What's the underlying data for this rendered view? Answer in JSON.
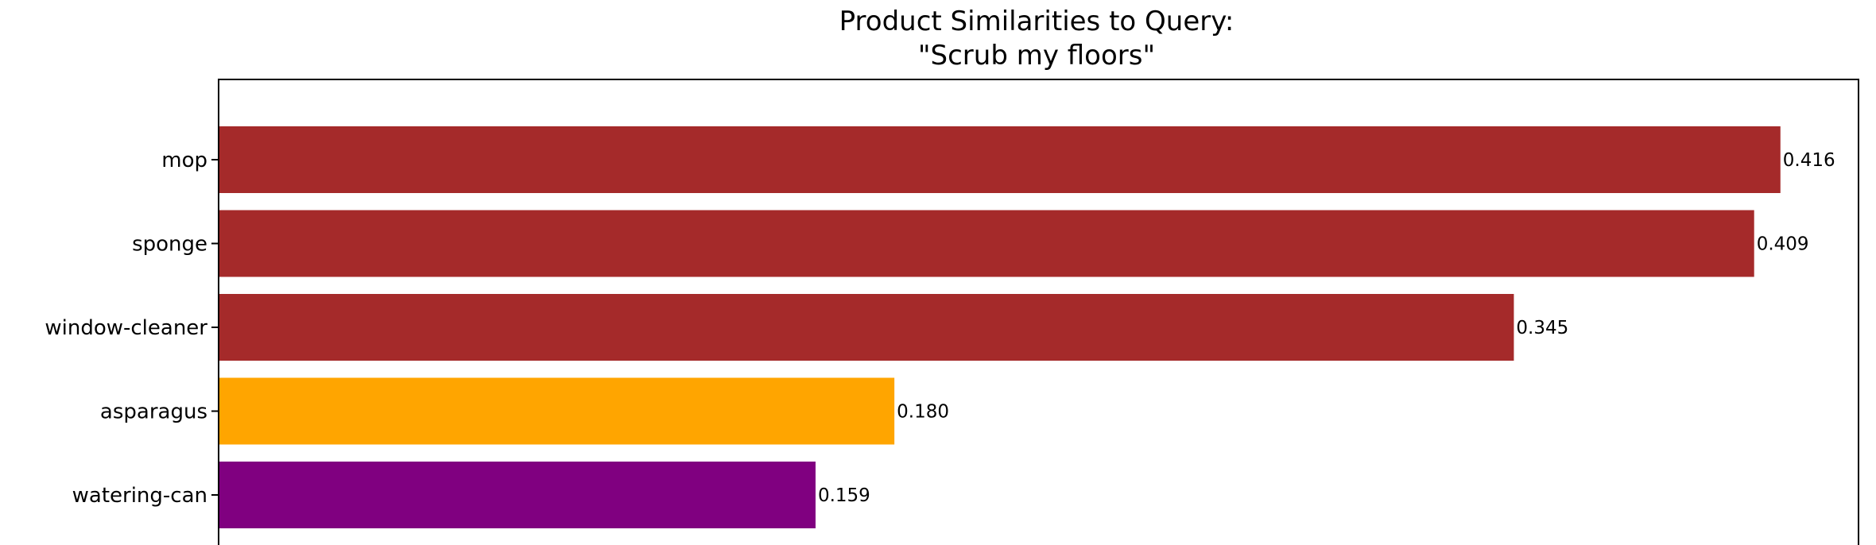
{
  "chart_data": {
    "type": "bar",
    "orientation": "horizontal",
    "title": [
      "Product Similarities to Query:",
      "\"Scrub my floors\""
    ],
    "categories": [
      "mop",
      "sponge",
      "window-cleaner",
      "asparagus",
      "watering-can"
    ],
    "values": [
      0.416,
      0.409,
      0.345,
      0.18,
      0.159
    ],
    "value_labels": [
      "0.416",
      "0.409",
      "0.345",
      "0.180",
      "0.159"
    ],
    "colors": [
      "#a52a2a",
      "#a52a2a",
      "#a52a2a",
      "#ffa500",
      "#800080"
    ],
    "xlim": [
      0,
      0.4368
    ],
    "grid": false,
    "legend": "none"
  }
}
